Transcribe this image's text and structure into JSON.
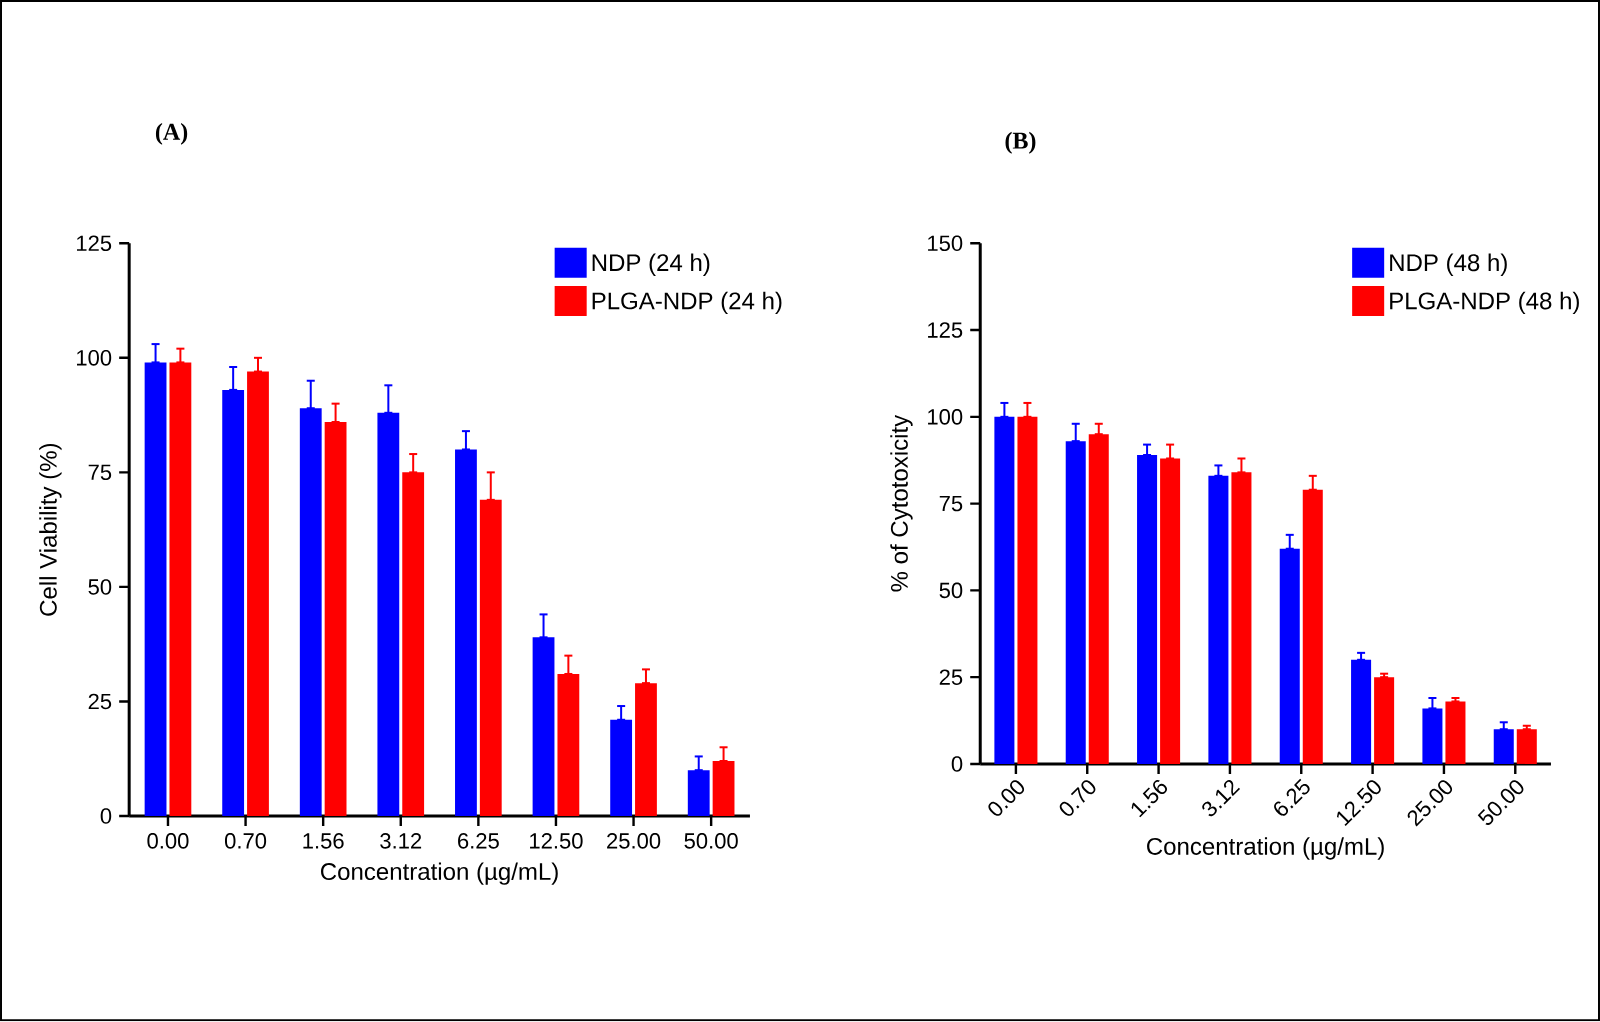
{
  "chart_data": [
    {
      "type": "bar",
      "title": "(A)",
      "xlabel": "Concentration (µg/mL)",
      "ylabel": "Cell Viability (%)",
      "categories": [
        "0.00",
        "0.70",
        "1.56",
        "3.12",
        "6.25",
        "12.50",
        "25.00",
        "50.00"
      ],
      "series": [
        {
          "name": "NDP (24 h)",
          "color": "#0000ff",
          "values": [
            99,
            93,
            89,
            88,
            80,
            39,
            21,
            10
          ],
          "errors": [
            [
              99,
              103
            ],
            [
              93,
              98
            ],
            [
              89,
              95
            ],
            [
              88,
              94
            ],
            [
              80,
              84
            ],
            [
              39,
              44
            ],
            [
              21,
              24
            ],
            [
              10,
              13
            ]
          ]
        },
        {
          "name": "PLGA-NDP (24 h)",
          "color": "#ff0000",
          "values": [
            99,
            97,
            86,
            75,
            69,
            31,
            29,
            12
          ],
          "errors": [
            [
              99,
              102
            ],
            [
              97,
              100
            ],
            [
              86,
              90
            ],
            [
              75,
              79
            ],
            [
              69,
              75
            ],
            [
              31,
              35
            ],
            [
              29,
              32
            ],
            [
              12,
              15
            ]
          ]
        }
      ],
      "ylim": [
        0,
        125
      ],
      "yticks": [
        0,
        25,
        50,
        75,
        100,
        125
      ],
      "legend": "top right"
    },
    {
      "type": "bar",
      "title": "(B)",
      "xlabel": "Concentration  (µg/mL)",
      "ylabel": "% of Cytotoxicity",
      "categories": [
        "0.00",
        "0.70",
        "1.56",
        "3.12",
        "6.25",
        "12.50",
        "25.00",
        "50.00"
      ],
      "series": [
        {
          "name": "NDP (48 h)",
          "color": "#0000ff",
          "values": [
            100,
            93,
            89,
            83,
            62,
            30,
            16,
            10
          ],
          "errors": [
            [
              100,
              104
            ],
            [
              93,
              98
            ],
            [
              89,
              92
            ],
            [
              83,
              86
            ],
            [
              62,
              66
            ],
            [
              30,
              32
            ],
            [
              16,
              19
            ],
            [
              10,
              12
            ]
          ]
        },
        {
          "name": "PLGA-NDP (48 h)",
          "color": "#ff0000",
          "values": [
            100,
            95,
            88,
            84,
            79,
            25,
            18,
            10
          ],
          "errors": [
            [
              100,
              104
            ],
            [
              95,
              98
            ],
            [
              88,
              92
            ],
            [
              84,
              88
            ],
            [
              79,
              83
            ],
            [
              25,
              26
            ],
            [
              18,
              19
            ],
            [
              10,
              11
            ]
          ]
        }
      ],
      "ylim": [
        0,
        150
      ],
      "yticks": [
        0,
        25,
        50,
        75,
        100,
        125,
        150
      ],
      "legend": "top right"
    }
  ]
}
